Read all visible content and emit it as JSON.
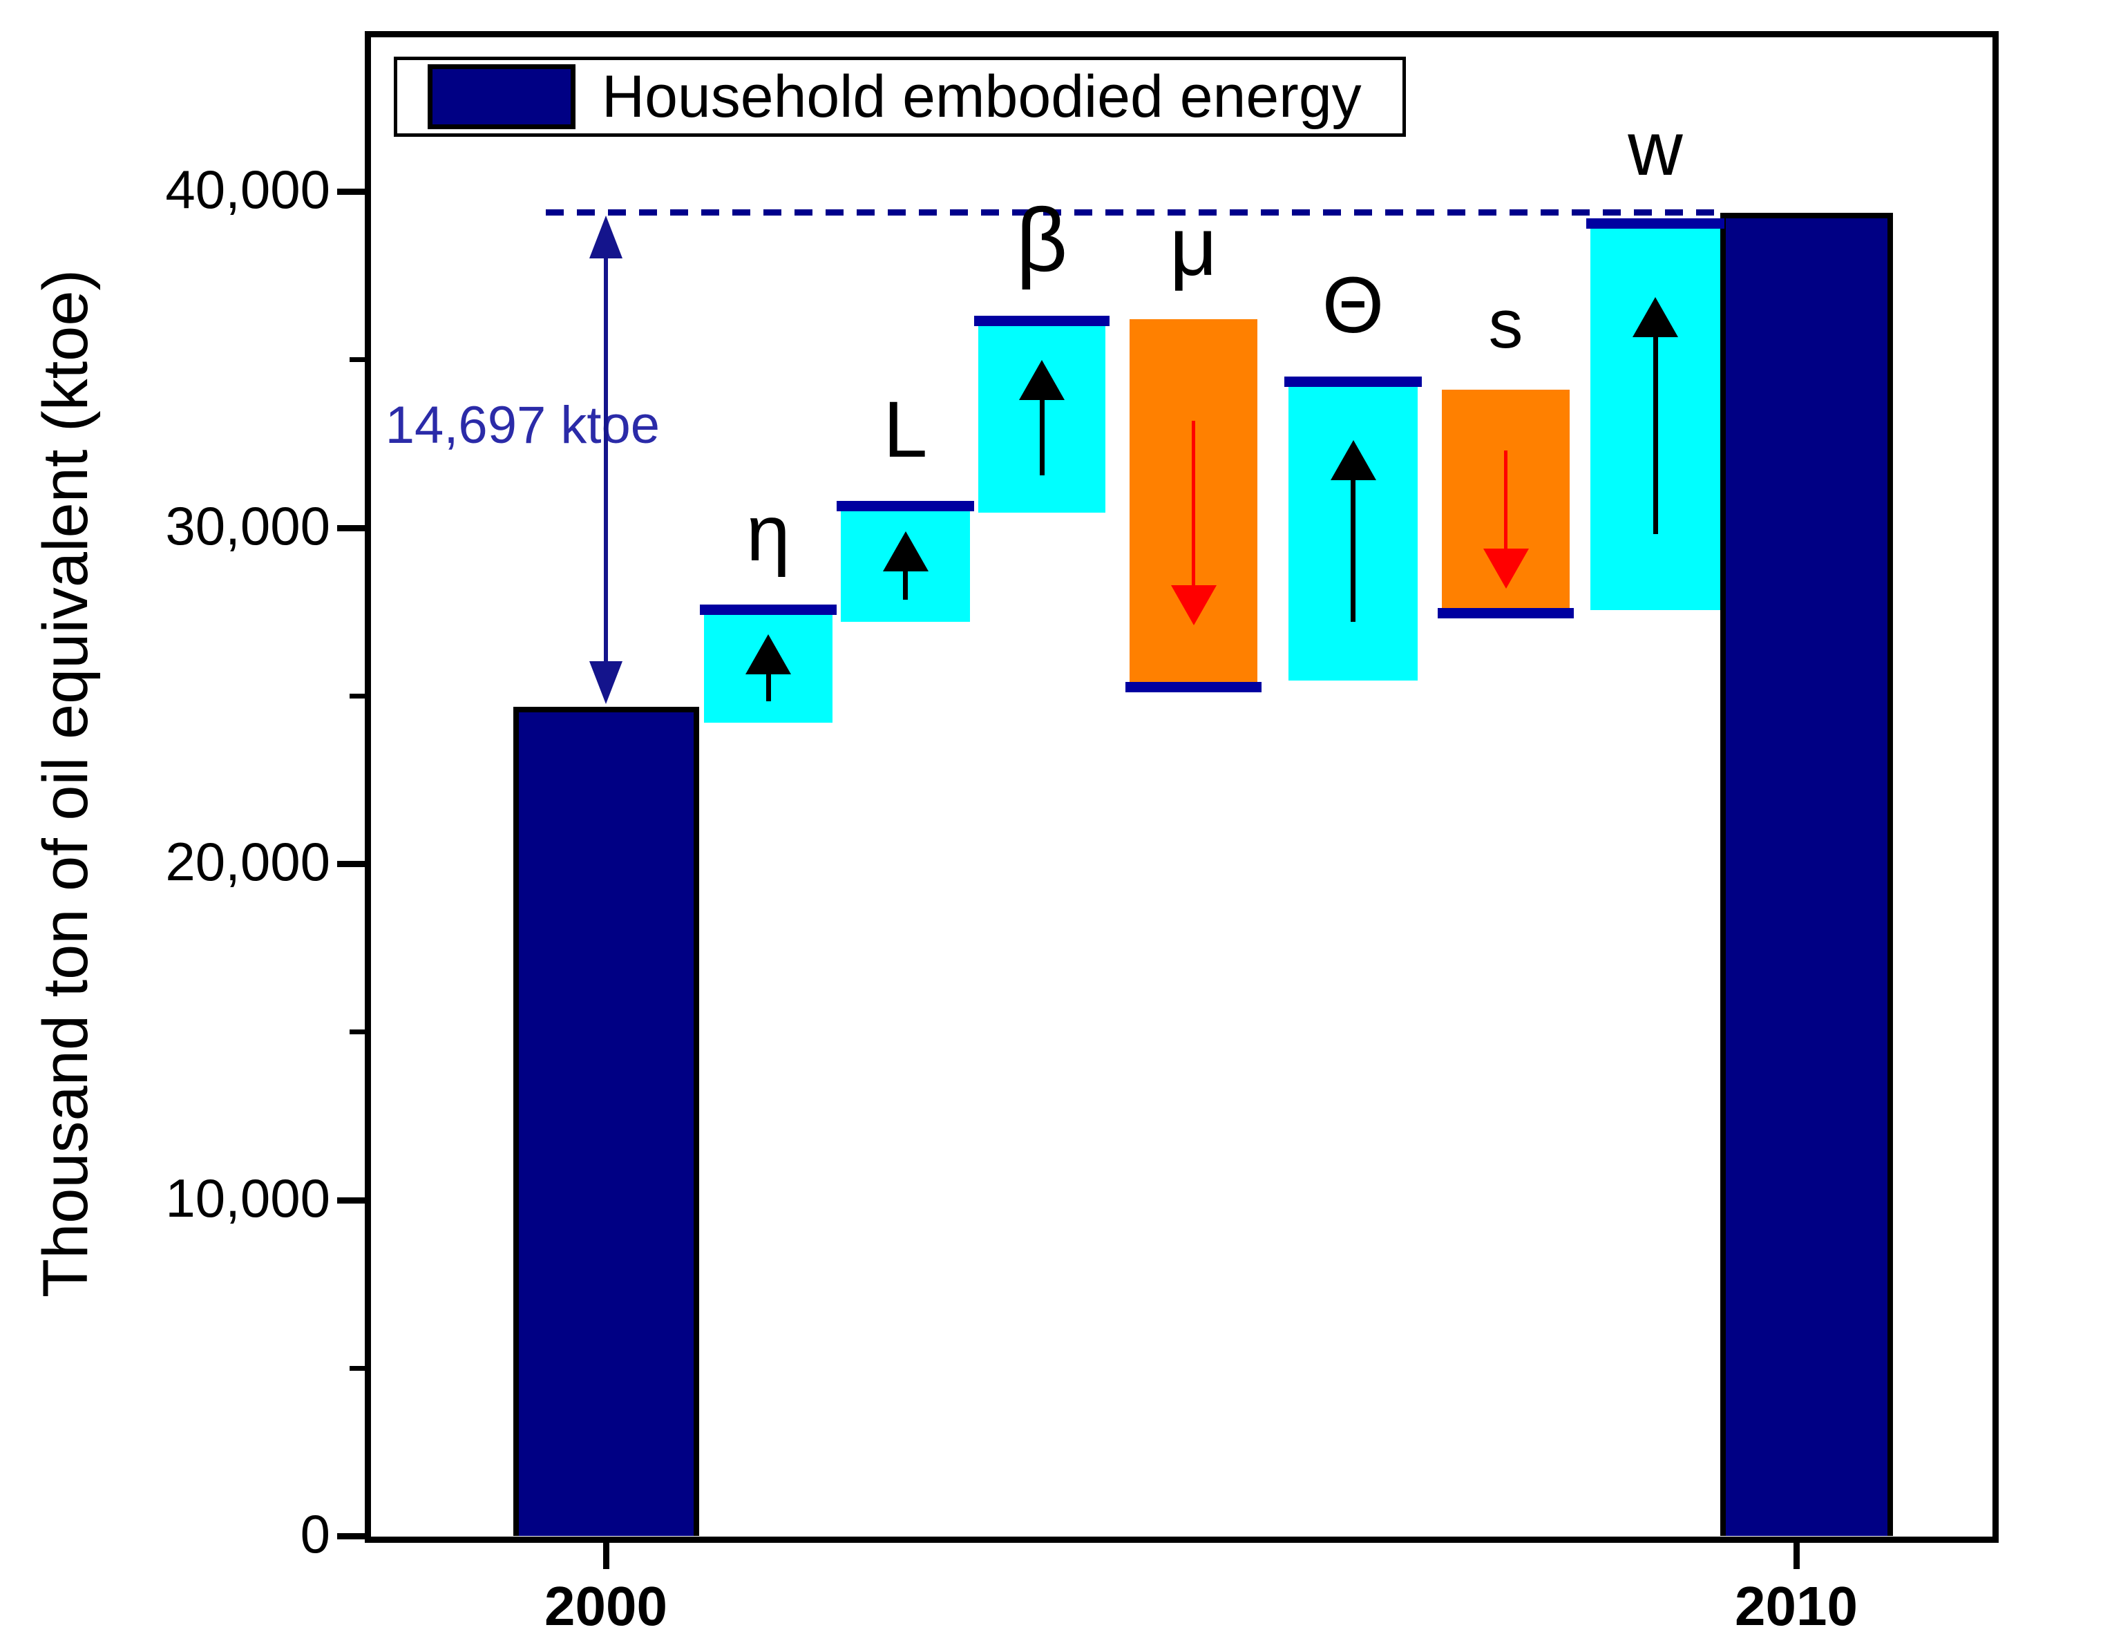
{
  "chart_data": {
    "type": "bar",
    "subtype": "waterfall-decomposition",
    "title": "",
    "xlabel": "",
    "ylabel": "Thousand ton of oil equivalent (ktoe)",
    "ylim": [
      0,
      44770
    ],
    "grid": false,
    "legend_position": "top-left",
    "legend": {
      "label": "Household embodied energy",
      "swatch_color": "#000084"
    },
    "x_categories": [
      "2000",
      "2010"
    ],
    "y_axis": {
      "major_ticks": [
        {
          "value": 0,
          "label": "0"
        },
        {
          "value": 10000,
          "label": "10,000"
        },
        {
          "value": 20000,
          "label": "20,000"
        },
        {
          "value": 30000,
          "label": "30,000"
        },
        {
          "value": 40000,
          "label": "40,000"
        }
      ],
      "minor_tick_values": [
        5000,
        15000,
        25000,
        35000
      ]
    },
    "anchor_bars": [
      {
        "category": "2000",
        "value": 24670
      },
      {
        "category": "2010",
        "value": 39367
      }
    ],
    "segments": [
      {
        "label": "η",
        "start": 24200,
        "end": 27700,
        "change": "increase",
        "color": "#00ffff",
        "arrow": "black-up"
      },
      {
        "label": "L",
        "start": 27200,
        "end": 30800,
        "change": "increase",
        "color": "#00ffff",
        "arrow": "black-up"
      },
      {
        "label": "β",
        "start": 30450,
        "end": 36300,
        "change": "increase",
        "color": "#00ffff",
        "arrow": "black-up"
      },
      {
        "label": "μ",
        "start": 36200,
        "end": 25100,
        "change": "decrease",
        "color": "#ff8000",
        "arrow": "red-down"
      },
      {
        "label": "Θ",
        "start": 25450,
        "end": 34500,
        "change": "increase",
        "color": "#00ffff",
        "arrow": "black-up"
      },
      {
        "label": "s",
        "start": 34100,
        "end": 27300,
        "change": "decrease",
        "color": "#ff8000",
        "arrow": "red-down"
      },
      {
        "label": "w",
        "start": 27550,
        "end": 39200,
        "change": "increase",
        "color": "#00ffff",
        "arrow": "black-up"
      }
    ],
    "dashed_reference_line": {
      "value": 39367,
      "color": "#00008b",
      "style": "dashed"
    },
    "annotation": {
      "text": "14,697 ktoe",
      "color": "#2b2ba8"
    },
    "colors": {
      "anchor_bar": "#000084",
      "bar_border": "#000000",
      "increase": "#00ffff",
      "decrease": "#ff8000",
      "cap": "#0000a0",
      "increase_arrow": "#000000",
      "decrease_arrow": "#ff0000",
      "range_arrow": "#14148c",
      "axis": "#000000"
    }
  }
}
